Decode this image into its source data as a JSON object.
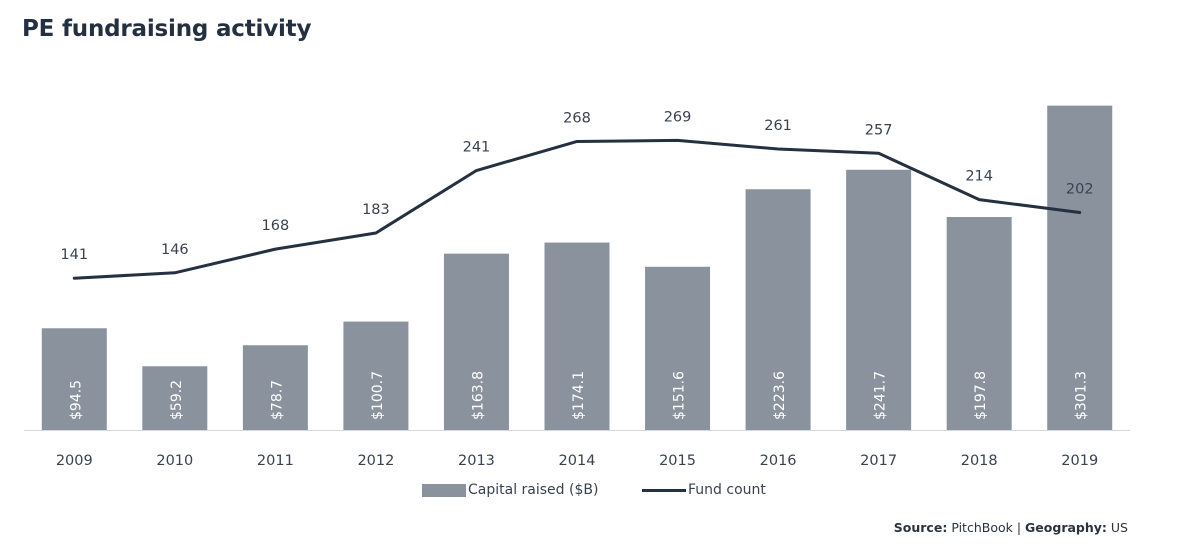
{
  "title": "PE fundraising activity",
  "source": {
    "label1": "Source:",
    "value1": "PitchBook",
    "separator": "|",
    "label2": "Geography:",
    "value2": "US"
  },
  "colors": {
    "bar": "#8a939d",
    "line": "#253140",
    "text": "#3a4250"
  },
  "chart_data": {
    "type": "bar",
    "categories": [
      "2009",
      "2010",
      "2011",
      "2012",
      "2013",
      "2014",
      "2015",
      "2016",
      "2017",
      "2018",
      "2019"
    ],
    "series": [
      {
        "name": "Capital raised ($B)",
        "type": "bar",
        "values": [
          94.5,
          59.2,
          78.7,
          100.7,
          163.8,
          174.1,
          151.6,
          223.6,
          241.7,
          197.8,
          301.3
        ],
        "labels": [
          "$94.5",
          "$59.2",
          "$78.7",
          "$100.7",
          "$163.8",
          "$174.1",
          "$151.6",
          "$223.6",
          "$241.7",
          "$197.8",
          "$301.3"
        ]
      },
      {
        "name": "Fund count",
        "type": "line",
        "values": [
          141,
          146,
          168,
          183,
          241,
          268,
          269,
          261,
          257,
          214,
          202
        ],
        "labels": [
          "141",
          "146",
          "168",
          "183",
          "241",
          "268",
          "269",
          "261",
          "257",
          "214",
          "202"
        ]
      }
    ],
    "bar_axis_range": [
      0,
      300
    ],
    "line_axis_range": [
      0,
      300
    ],
    "grid": false,
    "legend_placement": "bottom-center"
  }
}
